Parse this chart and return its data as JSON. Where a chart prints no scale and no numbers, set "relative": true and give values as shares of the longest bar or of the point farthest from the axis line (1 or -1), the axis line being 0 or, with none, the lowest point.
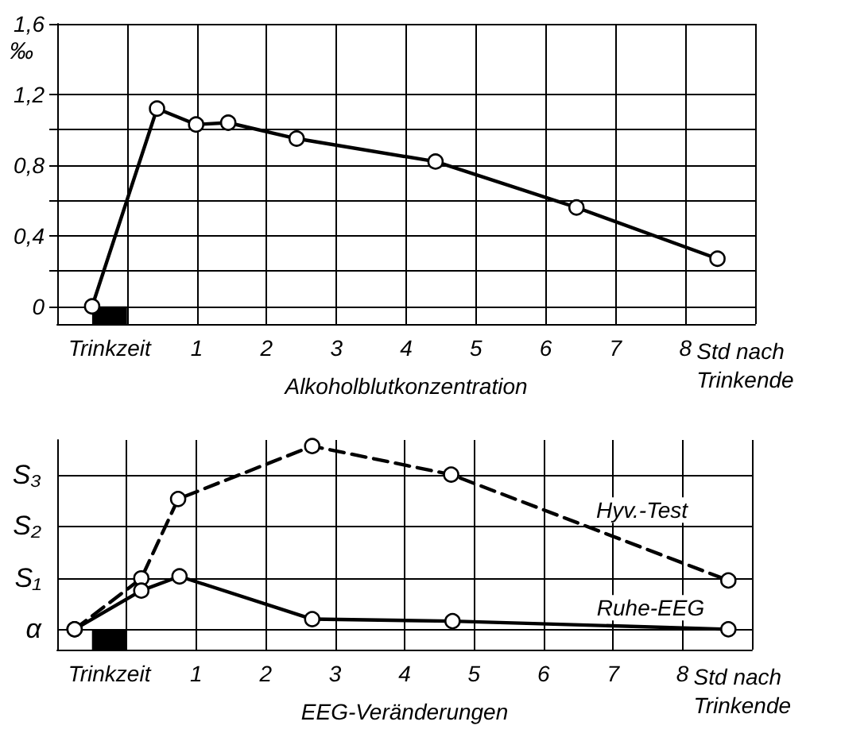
{
  "chart_data": [
    {
      "type": "line",
      "xlabel": "Alkoholblutkonzentration",
      "ylabel": "‰",
      "annotations": [
        "Std nach Trinkende"
      ],
      "series": [
        {
          "color": "#000000",
          "line_style": "solid",
          "x": [
            -0.5,
            0.43,
            0.99,
            1.45,
            2.43,
            4.42,
            6.44,
            8.46
          ],
          "values": [
            0,
            1.12,
            1.03,
            1.04,
            0.95,
            0.82,
            0.56,
            0.27
          ]
        }
      ],
      "xlim": [
        -1,
        9
      ],
      "xticks": [
        {
          "value": -1,
          "label": null
        },
        {
          "value": 0,
          "label": null
        },
        1,
        2,
        3,
        4,
        5,
        6,
        7,
        8,
        {
          "value": 9,
          "label": null
        }
      ],
      "ylim": [
        -0.1,
        1.6
      ],
      "yticks": [
        {
          "value": 0,
          "label": "0"
        },
        {
          "value": 0.2,
          "label": null
        },
        {
          "value": 0.4,
          "label": "0,4"
        },
        {
          "value": 0.6,
          "label": null
        },
        {
          "value": 0.8,
          "label": "0,8"
        },
        {
          "value": 1,
          "label": null
        },
        {
          "value": 1.2,
          "label": "1,2"
        },
        {
          "value": 1.6,
          "label": "1,6"
        }
      ],
      "bands": [
        {
          "axis": "x",
          "from": -0.5,
          "to": 0,
          "label": "Trinkzeit",
          "color": "#000000"
        }
      ],
      "grid": true,
      "legend": false,
      "marker": "circle"
    },
    {
      "type": "line",
      "xlabel": "EEG-Veränderungen",
      "annotations": [
        "Std nach Trinkende"
      ],
      "relative": true,
      "series": [
        {
          "name": "Hyv.-Test",
          "color": "#000000",
          "line_style": "dashed",
          "x": [
            -0.75,
            0.21,
            0.74,
            2.67,
            4.67,
            8.66
          ],
          "values": [
            0.1,
            0.35,
            0.74,
            1,
            0.86,
            0.34
          ]
        },
        {
          "name": "Ruhe-EEG",
          "color": "#000000",
          "line_style": "solid",
          "x": [
            -0.75,
            0.21,
            0.76,
            2.67,
            4.69,
            8.66
          ],
          "values": [
            0.1,
            0.29,
            0.36,
            0.15,
            0.14,
            0.1
          ]
        }
      ],
      "xlim": [
        -1,
        9
      ],
      "xticks": [
        {
          "value": -1,
          "label": null
        },
        {
          "value": 0,
          "label": null
        },
        1,
        2,
        3,
        4,
        5,
        6,
        7,
        8,
        {
          "value": 9,
          "label": null
        }
      ],
      "ref_lines": [
        {
          "axis": "y",
          "value": 0.1,
          "label": "α"
        },
        {
          "axis": "y",
          "value": 0.35,
          "label": "S₁"
        },
        {
          "axis": "y",
          "value": 0.61,
          "label": "S₂"
        },
        {
          "axis": "y",
          "value": 0.86,
          "label": "S₃"
        }
      ],
      "bands": [
        {
          "axis": "x",
          "from": -0.5,
          "to": 0,
          "label": "Trinkzeit",
          "color": "#000000"
        }
      ],
      "grid": "x",
      "legend": false,
      "marker": "circle"
    }
  ]
}
